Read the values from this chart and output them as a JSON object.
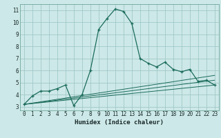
{
  "xlabel": "Humidex (Indice chaleur)",
  "bg_color": "#cde8e8",
  "grid_color": "#a0c8c8",
  "line_color": "#1a6b5a",
  "xlim": [
    -0.5,
    23.5
  ],
  "ylim": [
    2.7,
    11.5
  ],
  "xticks": [
    0,
    1,
    2,
    3,
    4,
    5,
    6,
    7,
    8,
    9,
    10,
    11,
    12,
    13,
    14,
    15,
    16,
    17,
    18,
    19,
    20,
    21,
    22,
    23
  ],
  "yticks": [
    3,
    4,
    5,
    6,
    7,
    8,
    9,
    10,
    11
  ],
  "line1_x": [
    0,
    1,
    2,
    3,
    4,
    5,
    6,
    7,
    8,
    9,
    10,
    11,
    12,
    13,
    14,
    15,
    16,
    17,
    18,
    19,
    20,
    21,
    22,
    23
  ],
  "line1_y": [
    3.2,
    3.9,
    4.3,
    4.3,
    4.5,
    4.8,
    3.1,
    4.0,
    6.0,
    9.4,
    10.3,
    11.1,
    10.9,
    9.9,
    7.0,
    6.6,
    6.3,
    6.7,
    6.1,
    5.9,
    6.1,
    5.1,
    5.2,
    4.8
  ],
  "line2_x": [
    0,
    23
  ],
  "line2_y": [
    3.2,
    4.8
  ],
  "line3_x": [
    0,
    23
  ],
  "line3_y": [
    3.2,
    5.2
  ],
  "line4_x": [
    0,
    23
  ],
  "line4_y": [
    3.2,
    5.6
  ]
}
